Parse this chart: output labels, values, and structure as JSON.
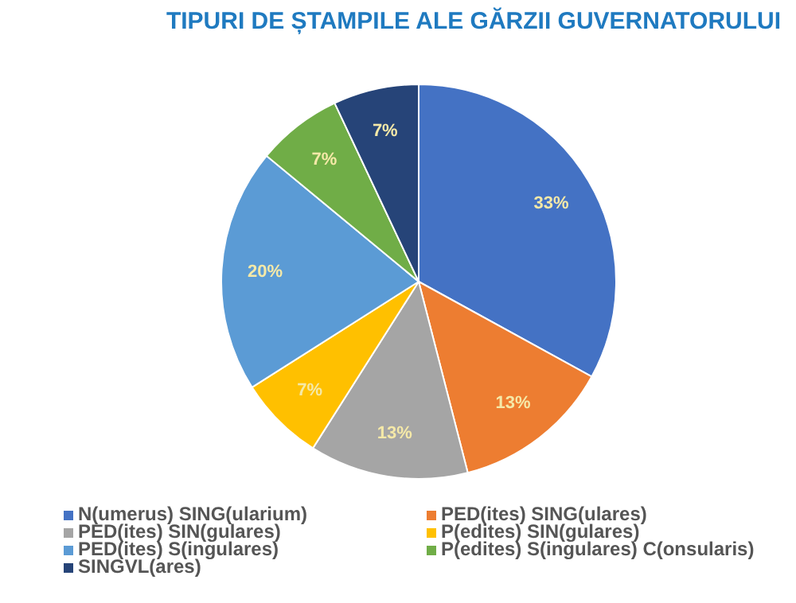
{
  "chart_data": {
    "type": "pie",
    "title": "TIPURI DE ȘTAMPILE ALE GĂRZII GUVERNATORULUI",
    "categories": [
      "N(umerus) SING(ularium)",
      "PED(ites) SING(ulares)",
      "PED(ites) SIN(gulares)",
      "P(edites) SIN(gulares)",
      "PED(ites) S(ingulares)",
      "P(edites) S(ingulares) C(onsularis)",
      "SINGVL(ares)"
    ],
    "values": [
      33,
      13,
      13,
      7,
      20,
      7,
      7
    ],
    "colors": [
      "#4472c4",
      "#ed7d31",
      "#a5a5a5",
      "#ffc000",
      "#5b9bd5",
      "#70ad47",
      "#264478"
    ],
    "value_labels": [
      "33%",
      "13%",
      "13%",
      "7%",
      "20%",
      "7%",
      "7%"
    ],
    "legend": "bottom"
  }
}
